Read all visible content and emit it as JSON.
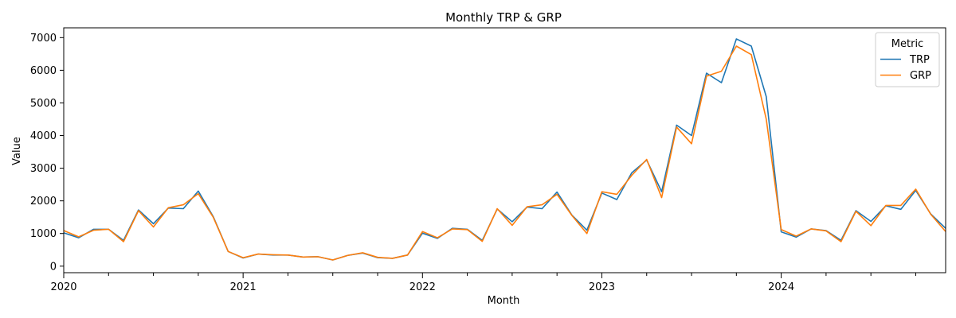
{
  "chart_data": {
    "type": "line",
    "title": "Monthly TRP & GRP",
    "xlabel": "Month",
    "ylabel": "Value",
    "xlim": [
      "2020-01",
      "2024-12"
    ],
    "ylim": [
      -200,
      7300
    ],
    "yticks": [
      0,
      1000,
      2000,
      3000,
      4000,
      5000,
      6000,
      7000
    ],
    "xticks": [
      {
        "date": "2020-01",
        "label": "2020"
      },
      {
        "date": "2021-01",
        "label": "2021"
      },
      {
        "date": "2022-01",
        "label": "2022"
      },
      {
        "date": "2023-01",
        "label": "2023"
      },
      {
        "date": "2024-01",
        "label": "2024"
      }
    ],
    "legend": {
      "title": "Metric",
      "placement": "top-right"
    },
    "grid": false,
    "x": [
      "2020-01",
      "2020-02",
      "2020-03",
      "2020-04",
      "2020-05",
      "2020-06",
      "2020-07",
      "2020-08",
      "2020-09",
      "2020-10",
      "2020-11",
      "2020-12",
      "2021-01",
      "2021-02",
      "2021-03",
      "2021-04",
      "2021-05",
      "2021-06",
      "2021-07",
      "2021-08",
      "2021-09",
      "2021-10",
      "2021-11",
      "2021-12",
      "2022-01",
      "2022-02",
      "2022-03",
      "2022-04",
      "2022-05",
      "2022-06",
      "2022-07",
      "2022-08",
      "2022-09",
      "2022-10",
      "2022-11",
      "2022-12",
      "2023-01",
      "2023-02",
      "2023-03",
      "2023-04",
      "2023-05",
      "2023-06",
      "2023-07",
      "2023-08",
      "2023-09",
      "2023-10",
      "2023-11",
      "2023-12",
      "2024-01",
      "2024-02",
      "2024-03",
      "2024-04",
      "2024-05",
      "2024-06",
      "2024-07",
      "2024-08",
      "2024-09",
      "2024-10",
      "2024-11",
      "2024-12"
    ],
    "series": [
      {
        "name": "TRP",
        "color": "#1f77b4",
        "values": [
          1020,
          870,
          1130,
          1130,
          790,
          1720,
          1300,
          1780,
          1760,
          2300,
          1520,
          450,
          250,
          370,
          340,
          340,
          280,
          290,
          190,
          330,
          400,
          260,
          240,
          340,
          1010,
          850,
          1160,
          1130,
          790,
          1750,
          1360,
          1810,
          1760,
          2270,
          1560,
          1100,
          2240,
          2040,
          2860,
          3250,
          2280,
          4320,
          4000,
          5910,
          5620,
          6960,
          6740,
          5190,
          1050,
          890,
          1140,
          1090,
          790,
          1700,
          1370,
          1850,
          1740,
          2320,
          1600,
          1160
        ]
      },
      {
        "name": "GRP",
        "color": "#ff7f0e",
        "values": [
          1090,
          900,
          1100,
          1130,
          750,
          1700,
          1200,
          1790,
          1880,
          2220,
          1500,
          450,
          260,
          370,
          350,
          340,
          280,
          290,
          190,
          330,
          410,
          270,
          240,
          340,
          1060,
          870,
          1140,
          1120,
          760,
          1760,
          1250,
          1820,
          1880,
          2200,
          1550,
          1000,
          2280,
          2200,
          2780,
          3270,
          2100,
          4260,
          3750,
          5820,
          5970,
          6740,
          6480,
          4500,
          1120,
          920,
          1140,
          1080,
          750,
          1680,
          1240,
          1860,
          1860,
          2360,
          1590,
          1060
        ]
      }
    ]
  }
}
